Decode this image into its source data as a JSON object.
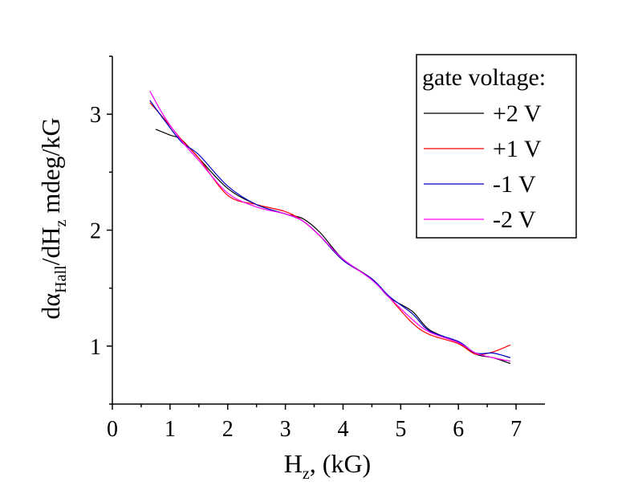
{
  "chart_data": {
    "type": "line",
    "title": "",
    "xlabel": {
      "main": "H",
      "sub": "z",
      "rest": ", (kG)"
    },
    "ylabel": {
      "pre": "dα",
      "sub1": "Hall",
      "mid": "/dH",
      "sub2": "z",
      "rest": " mdeg/kG"
    },
    "xlim": [
      0,
      7.5
    ],
    "ylim": [
      0.5,
      3.5
    ],
    "xticks": [
      0,
      1,
      2,
      3,
      4,
      5,
      6,
      7
    ],
    "yticks": [
      1,
      2,
      3
    ],
    "xtick_labels": [
      "0",
      "1",
      "2",
      "3",
      "4",
      "5",
      "6",
      "7"
    ],
    "ytick_labels": [
      "1",
      "2",
      "3"
    ],
    "grid": false,
    "legend": {
      "title": "gate voltage:",
      "placement": "top-right"
    },
    "series": [
      {
        "name": "+2 V",
        "color": "#000000",
        "x": [
          0.75,
          1.0,
          1.2,
          1.5,
          2.0,
          2.5,
          3.0,
          3.3,
          3.6,
          4.0,
          4.5,
          4.8,
          5.2,
          5.5,
          6.0,
          6.3,
          6.6,
          6.9
        ],
        "y": [
          2.87,
          2.82,
          2.78,
          2.62,
          2.36,
          2.22,
          2.14,
          2.1,
          1.98,
          1.75,
          1.58,
          1.42,
          1.3,
          1.14,
          1.03,
          0.93,
          0.9,
          0.85
        ]
      },
      {
        "name": "+1 V",
        "color": "#ff0000",
        "x": [
          0.65,
          0.9,
          1.2,
          1.5,
          2.0,
          2.5,
          3.0,
          3.3,
          3.6,
          4.0,
          4.5,
          4.8,
          5.2,
          5.5,
          6.0,
          6.3,
          6.6,
          6.9
        ],
        "y": [
          3.1,
          2.96,
          2.78,
          2.62,
          2.3,
          2.22,
          2.16,
          2.08,
          1.95,
          1.74,
          1.58,
          1.42,
          1.2,
          1.1,
          1.02,
          0.93,
          0.95,
          1.01
        ]
      },
      {
        "name": "-1 V",
        "color": "#0000cc",
        "x": [
          0.65,
          0.9,
          1.2,
          1.5,
          2.0,
          2.5,
          3.0,
          3.3,
          3.6,
          4.0,
          4.5,
          4.8,
          5.2,
          5.5,
          6.0,
          6.3,
          6.6,
          6.9
        ],
        "y": [
          3.12,
          2.95,
          2.76,
          2.65,
          2.38,
          2.22,
          2.14,
          2.08,
          1.95,
          1.74,
          1.58,
          1.43,
          1.28,
          1.13,
          1.04,
          0.94,
          0.94,
          0.9
        ]
      },
      {
        "name": "-2 V",
        "color": "#ff00ff",
        "x": [
          0.65,
          0.9,
          1.2,
          1.5,
          2.0,
          2.5,
          3.0,
          3.3,
          3.6,
          4.0,
          4.5,
          4.8,
          5.2,
          5.5,
          6.0,
          6.3,
          6.6,
          6.9
        ],
        "y": [
          3.2,
          2.98,
          2.77,
          2.6,
          2.32,
          2.2,
          2.14,
          2.08,
          1.95,
          1.75,
          1.57,
          1.42,
          1.23,
          1.12,
          1.03,
          0.94,
          0.9,
          0.87
        ]
      }
    ]
  }
}
